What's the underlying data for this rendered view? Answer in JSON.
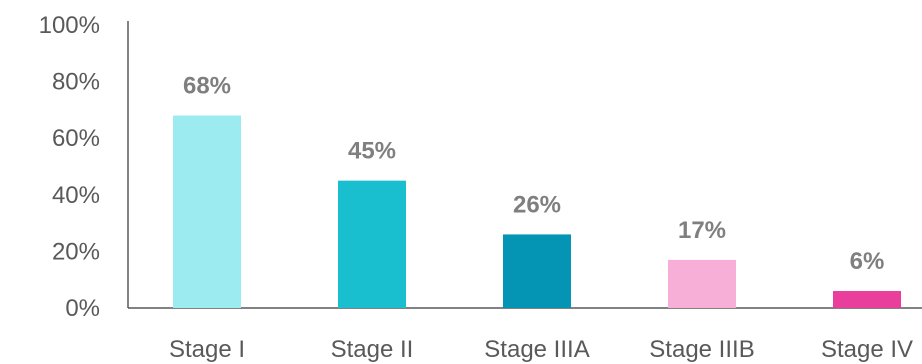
{
  "chart_data": {
    "type": "bar",
    "categories": [
      "Stage I",
      "Stage II",
      "Stage IIIA",
      "Stage IIIB",
      "Stage IV"
    ],
    "values": [
      68,
      45,
      26,
      17,
      6
    ],
    "data_labels": [
      "68%",
      "45%",
      "26%",
      "17%",
      "6%"
    ],
    "colors": [
      "#9BEBF0",
      "#19BFCF",
      "#0395B3",
      "#F7AFD8",
      "#EA3E9D"
    ],
    "y_ticks": [
      {
        "value": 0,
        "label": "0%"
      },
      {
        "value": 20,
        "label": "20%"
      },
      {
        "value": 40,
        "label": "40%"
      },
      {
        "value": 60,
        "label": "60%"
      },
      {
        "value": 80,
        "label": "80%"
      },
      {
        "value": 100,
        "label": "100%"
      }
    ],
    "ylim": [
      0,
      100
    ],
    "title": "",
    "xlabel": "",
    "ylabel": "",
    "grid": false,
    "legend": "none"
  }
}
